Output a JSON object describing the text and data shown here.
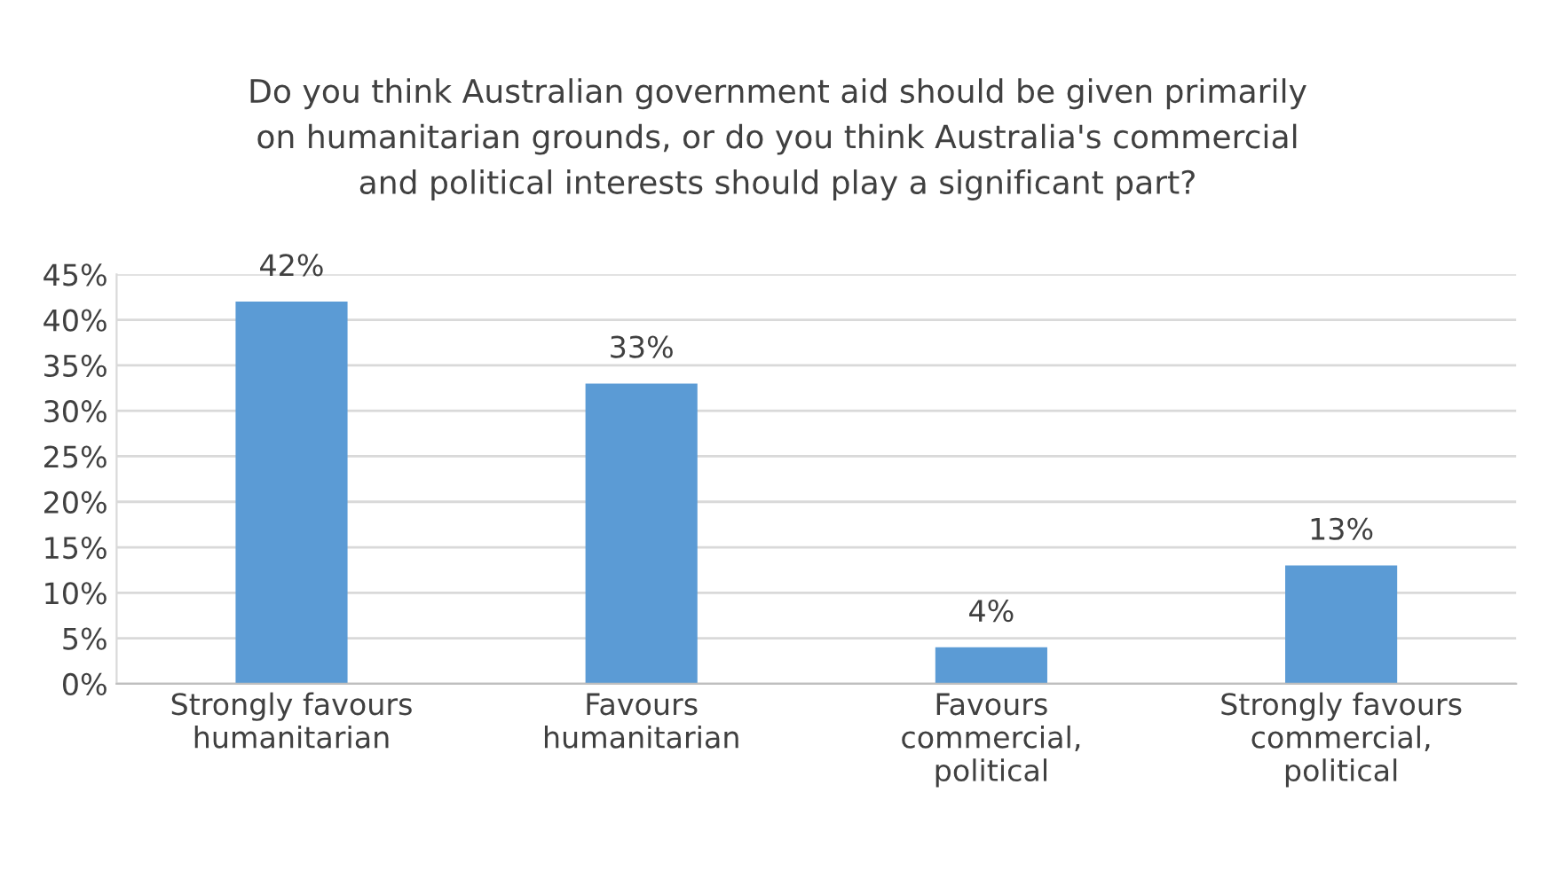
{
  "chart_data": {
    "type": "bar",
    "title": "Do you think Australian government aid should be given primarily\non humanitarian grounds, or do you think Australia's commercial\nand political interests should play a significant part?",
    "categories": [
      "Strongly favours\nhumanitarian",
      "Favours\nhumanitarian",
      "Favours\ncommercial,\npolitical",
      "Strongly favours\ncommercial,\npolitical"
    ],
    "values": [
      42,
      33,
      4,
      13
    ],
    "value_labels": [
      "42%",
      "33%",
      "4%",
      "13%"
    ],
    "color": "#5b9bd5",
    "ylim": [
      0,
      45
    ],
    "yticks": [
      {
        "value": 0,
        "label": "0%"
      },
      {
        "value": 5,
        "label": "5%"
      },
      {
        "value": 10,
        "label": "10%"
      },
      {
        "value": 15,
        "label": "15%"
      },
      {
        "value": 20,
        "label": "20%"
      },
      {
        "value": 25,
        "label": "25%"
      },
      {
        "value": 30,
        "label": "30%"
      },
      {
        "value": 35,
        "label": "35%"
      },
      {
        "value": 40,
        "label": "40%"
      },
      {
        "value": 45,
        "label": "45%"
      }
    ],
    "grid": "y",
    "legend": false
  }
}
